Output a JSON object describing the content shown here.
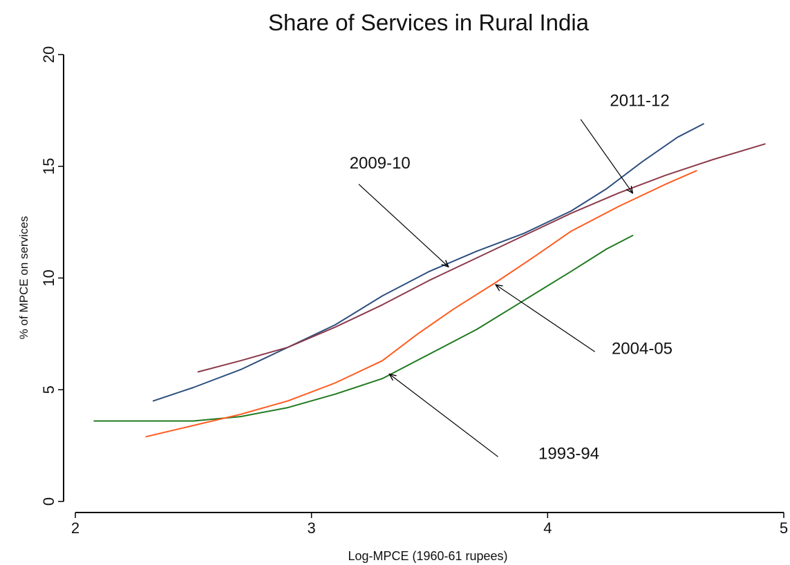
{
  "chart_data": {
    "type": "line",
    "title": "Share of Services in Rural India",
    "xlabel": "Log-MPCE (1960-61 rupees)",
    "ylabel": "% of MPCE on services",
    "xlim": [
      2,
      5
    ],
    "ylim": [
      0,
      20
    ],
    "xticks": [
      2,
      3,
      4,
      5
    ],
    "yticks": [
      0,
      5,
      10,
      15,
      20
    ],
    "grid": false,
    "series": [
      {
        "name": "1993-94",
        "color": "#1f7a1f",
        "points": [
          [
            2.08,
            3.6
          ],
          [
            2.3,
            3.6
          ],
          [
            2.5,
            3.6
          ],
          [
            2.7,
            3.8
          ],
          [
            2.9,
            4.2
          ],
          [
            3.1,
            4.8
          ],
          [
            3.3,
            5.5
          ],
          [
            3.5,
            6.6
          ],
          [
            3.7,
            7.7
          ],
          [
            3.9,
            9.0
          ],
          [
            4.1,
            10.3
          ],
          [
            4.25,
            11.3
          ],
          [
            4.36,
            11.9
          ]
        ]
      },
      {
        "name": "2004-05",
        "color": "#ff5a1e",
        "points": [
          [
            2.3,
            2.9
          ],
          [
            2.5,
            3.4
          ],
          [
            2.7,
            3.9
          ],
          [
            2.9,
            4.5
          ],
          [
            3.1,
            5.3
          ],
          [
            3.3,
            6.3
          ],
          [
            3.45,
            7.5
          ],
          [
            3.6,
            8.6
          ],
          [
            3.78,
            9.8
          ],
          [
            3.95,
            11.0
          ],
          [
            4.1,
            12.1
          ],
          [
            4.3,
            13.2
          ],
          [
            4.5,
            14.2
          ],
          [
            4.63,
            14.8
          ]
        ]
      },
      {
        "name": "2009-10",
        "color": "#2e4e7e",
        "points": [
          [
            2.33,
            4.5
          ],
          [
            2.5,
            5.1
          ],
          [
            2.7,
            5.9
          ],
          [
            2.9,
            6.9
          ],
          [
            3.1,
            7.9
          ],
          [
            3.3,
            9.2
          ],
          [
            3.5,
            10.3
          ],
          [
            3.7,
            11.2
          ],
          [
            3.9,
            12.0
          ],
          [
            4.1,
            13.0
          ],
          [
            4.25,
            14.0
          ],
          [
            4.4,
            15.2
          ],
          [
            4.55,
            16.3
          ],
          [
            4.66,
            16.9
          ]
        ]
      },
      {
        "name": "2011-12",
        "color": "#8b3a4a",
        "points": [
          [
            2.52,
            5.8
          ],
          [
            2.7,
            6.3
          ],
          [
            2.9,
            6.9
          ],
          [
            3.1,
            7.8
          ],
          [
            3.3,
            8.8
          ],
          [
            3.5,
            9.9
          ],
          [
            3.7,
            10.9
          ],
          [
            3.9,
            11.9
          ],
          [
            4.1,
            12.9
          ],
          [
            4.3,
            13.8
          ],
          [
            4.5,
            14.6
          ],
          [
            4.7,
            15.3
          ],
          [
            4.92,
            16.0
          ]
        ]
      }
    ],
    "annotations": [
      {
        "text": "2011-12",
        "series": "2011-12",
        "label_at": [
          4.39,
          17.7
        ],
        "arrow_from": [
          4.14,
          17.1
        ],
        "arrow_to": [
          4.36,
          13.8
        ]
      },
      {
        "text": "2009-10",
        "series": "2009-10",
        "label_at": [
          3.29,
          14.9
        ],
        "arrow_from": [
          3.2,
          14.2
        ],
        "arrow_to": [
          3.58,
          10.5
        ]
      },
      {
        "text": "2004-05",
        "series": "2004-05",
        "label_at": [
          4.4,
          6.6
        ],
        "arrow_from": [
          4.2,
          6.7
        ],
        "arrow_to": [
          3.78,
          9.7
        ]
      },
      {
        "text": "1993-94",
        "series": "1993-94",
        "label_at": [
          4.09,
          1.9
        ],
        "arrow_from": [
          3.79,
          2.0
        ],
        "arrow_to": [
          3.33,
          5.7
        ]
      }
    ]
  }
}
